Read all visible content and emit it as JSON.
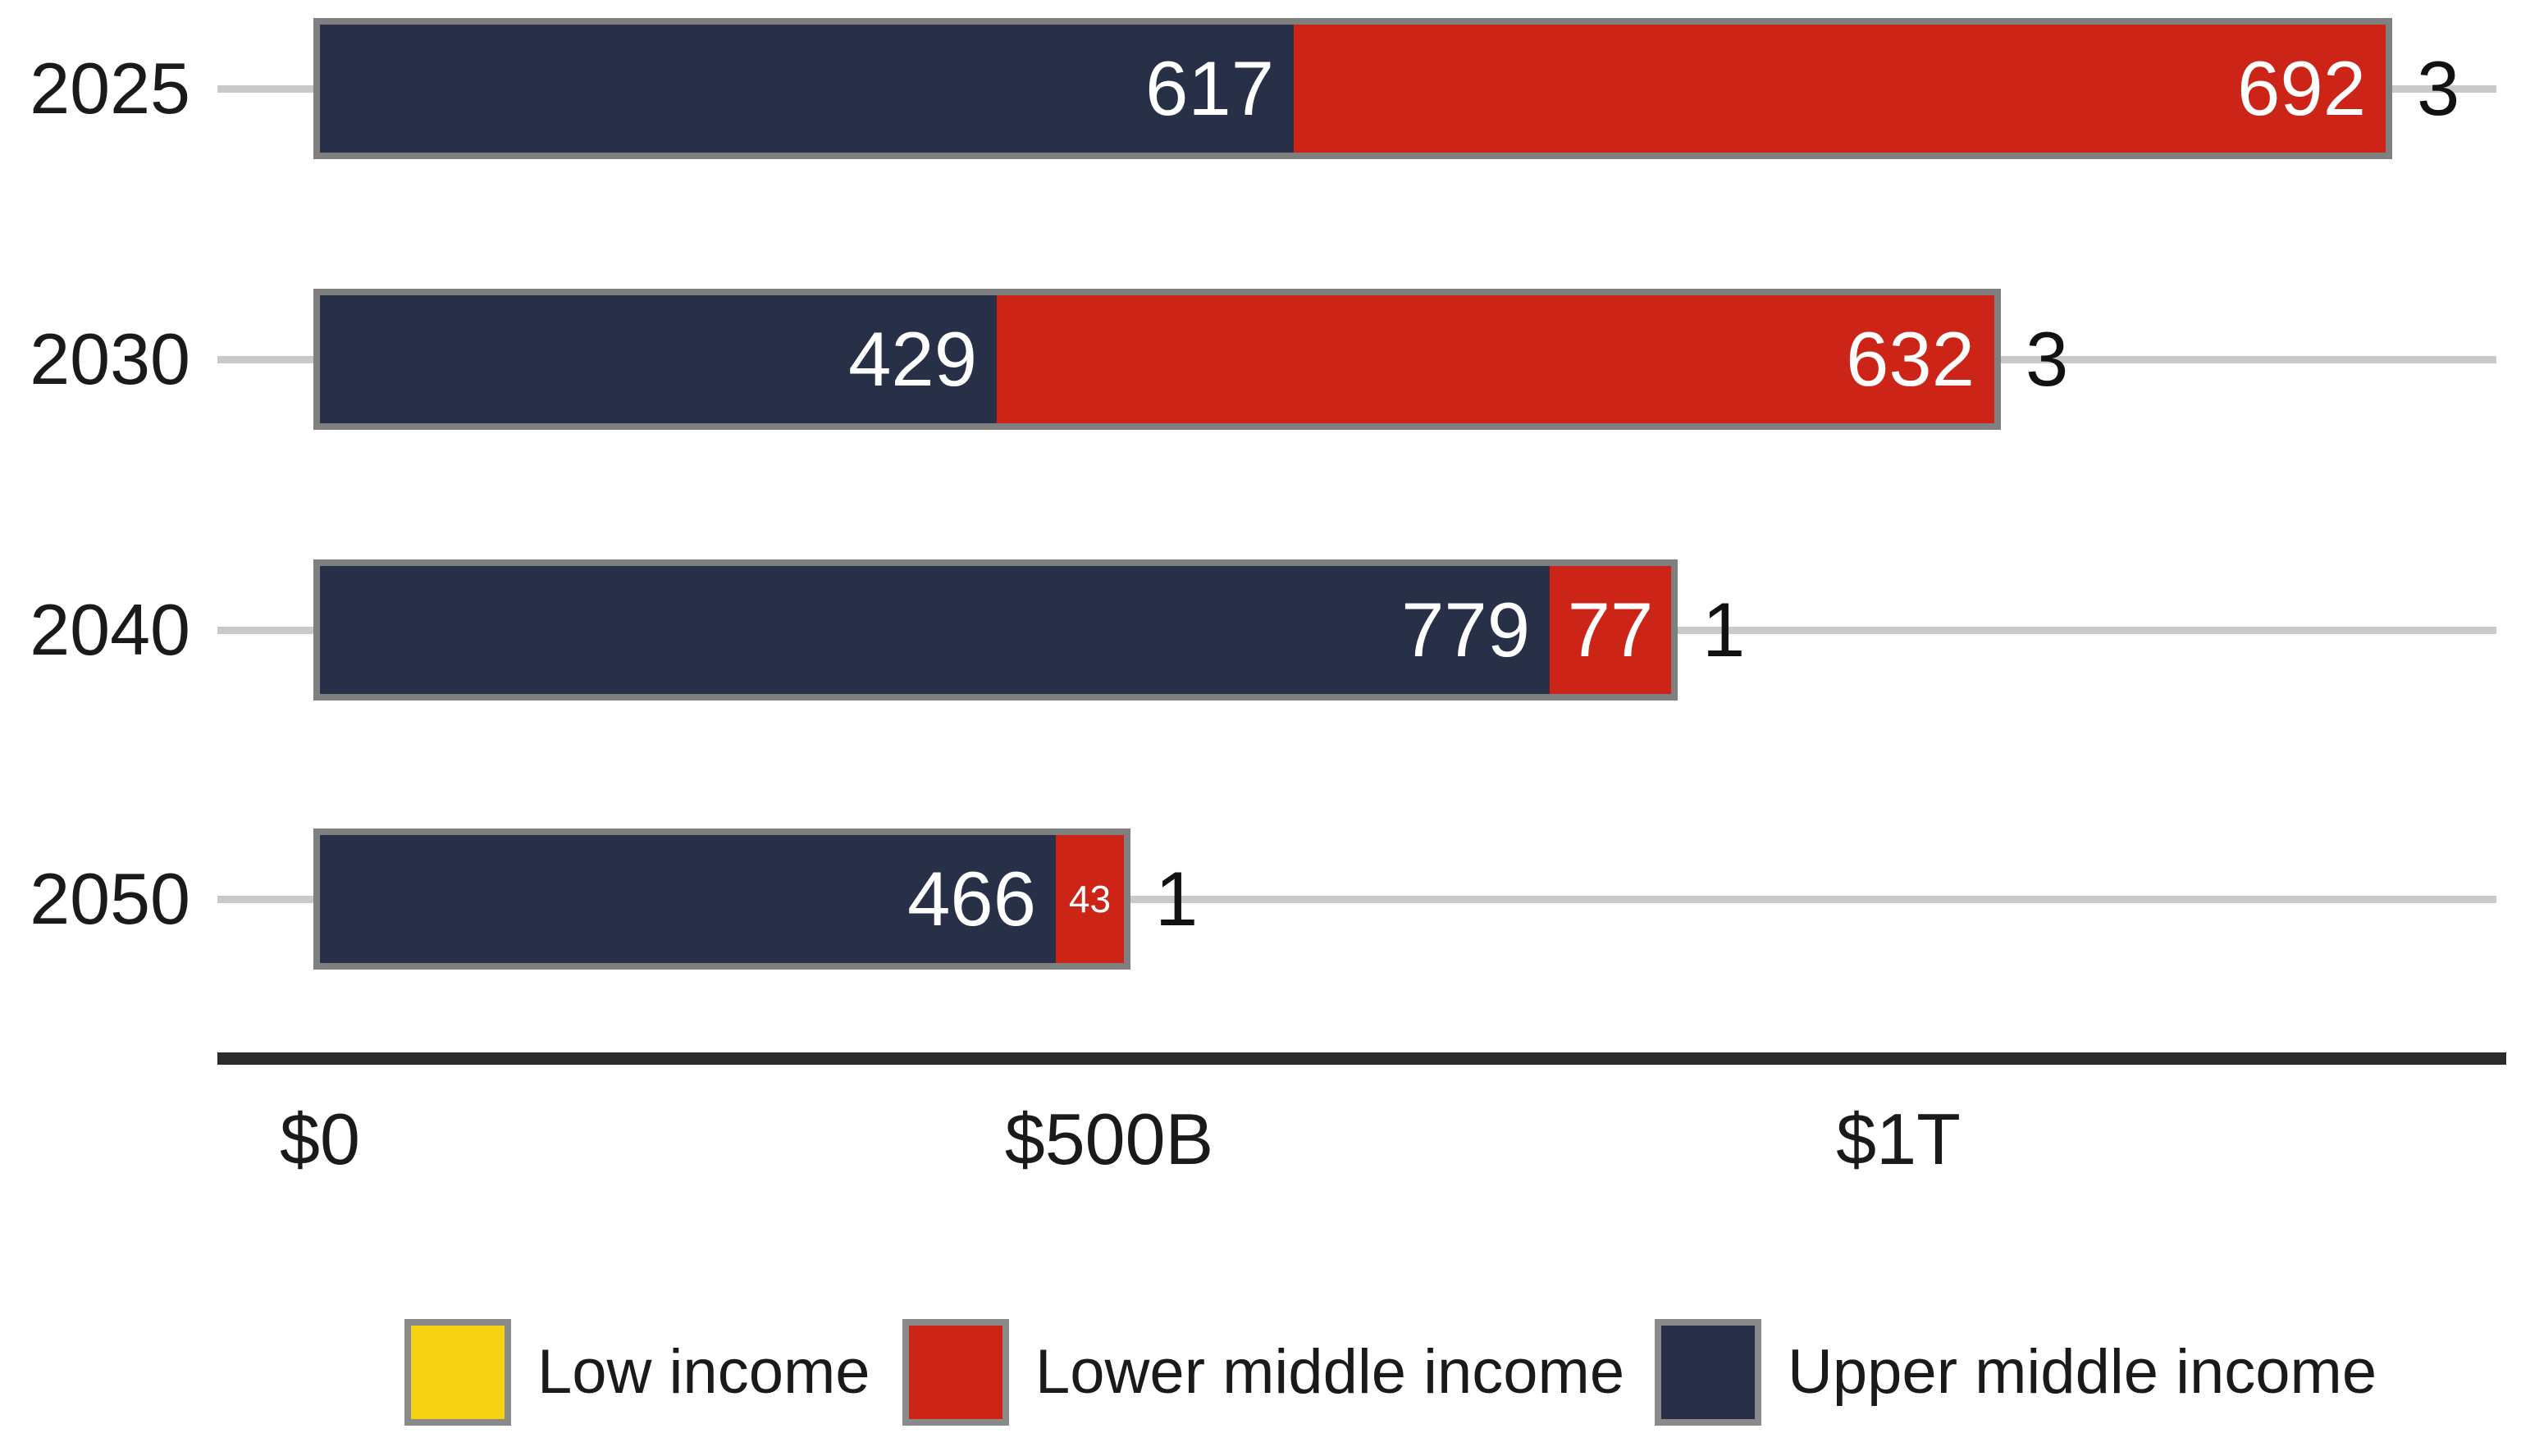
{
  "chart_data": {
    "type": "bar",
    "orientation": "horizontal",
    "stacked": true,
    "grid": true,
    "categories": [
      "2025",
      "2030",
      "2040",
      "2050"
    ],
    "series": [
      {
        "name": "Upper middle income",
        "color": "#283048",
        "values": [
          617,
          429,
          779,
          466
        ]
      },
      {
        "name": "Lower middle income",
        "color": "#cc2517",
        "values": [
          692,
          632,
          77,
          43
        ]
      },
      {
        "name": "Low income",
        "color": "#f5d312",
        "values": [
          3,
          3,
          1,
          1
        ]
      }
    ],
    "bar_value_labels": {
      "2025": {
        "Upper middle income": "617",
        "Lower middle income": "692",
        "Low income": "3"
      },
      "2030": {
        "Upper middle income": "429",
        "Lower middle income": "632",
        "Low income": "3"
      },
      "2040": {
        "Upper middle income": "779",
        "Lower middle income": "77",
        "Low income": "1"
      },
      "2050": {
        "Upper middle income": "466",
        "Lower middle income": "43",
        "Low income": "1"
      }
    },
    "x_axis": {
      "ticks": [
        {
          "value": 0,
          "label": "$0"
        },
        {
          "value": 500,
          "label": "$500B"
        },
        {
          "value": 1000,
          "label": "$1T"
        }
      ],
      "xlim": [
        0,
        1380
      ]
    },
    "legend": {
      "position": "bottom",
      "items": [
        {
          "label": "Low income",
          "color": "#f5d312"
        },
        {
          "label": "Lower middle income",
          "color": "#cc2517"
        },
        {
          "label": "Upper middle income",
          "color": "#283048"
        }
      ]
    },
    "colors": {
      "bar_border": "#7f7f7f",
      "gridline": "#c9c9c9",
      "axis_line": "#2b2b2b",
      "text": "#1a1a1a",
      "value_label_inside": "#ffffff",
      "value_label_outside": "#111111"
    }
  }
}
